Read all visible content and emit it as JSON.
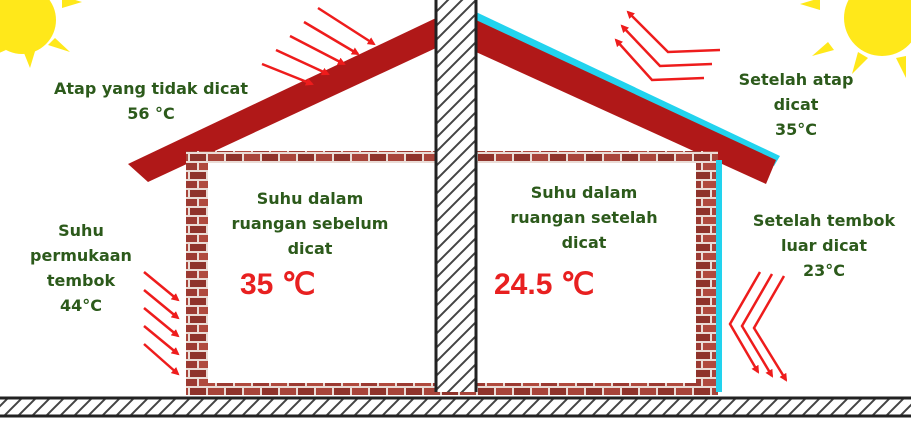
{
  "labels": {
    "roof_unpainted": "Atap yang tidak dicat\n56 °C",
    "roof_painted": "Setelah atap\ndicat\n35°C",
    "wall_surface": "Suhu\npermukaan\ntembok\n44°C",
    "wall_painted": "Setelah tembok\nluar dicat\n23°C",
    "room_before": "Suhu dalam\nruangan sebelum\ndicat",
    "room_after": "Suhu dalam\nruangan setelah\ndicat"
  },
  "temperatures": {
    "room_before": "35 ℃",
    "room_after": "24.5 ℃"
  },
  "colors": {
    "roof": "#b01818",
    "brick": "#9c3a32",
    "coating": "#22d3ee",
    "arrow": "#ee1c1c",
    "sun": "#ffe81a",
    "label_text": "#2c5a1b",
    "temp_text": "#e82020"
  }
}
